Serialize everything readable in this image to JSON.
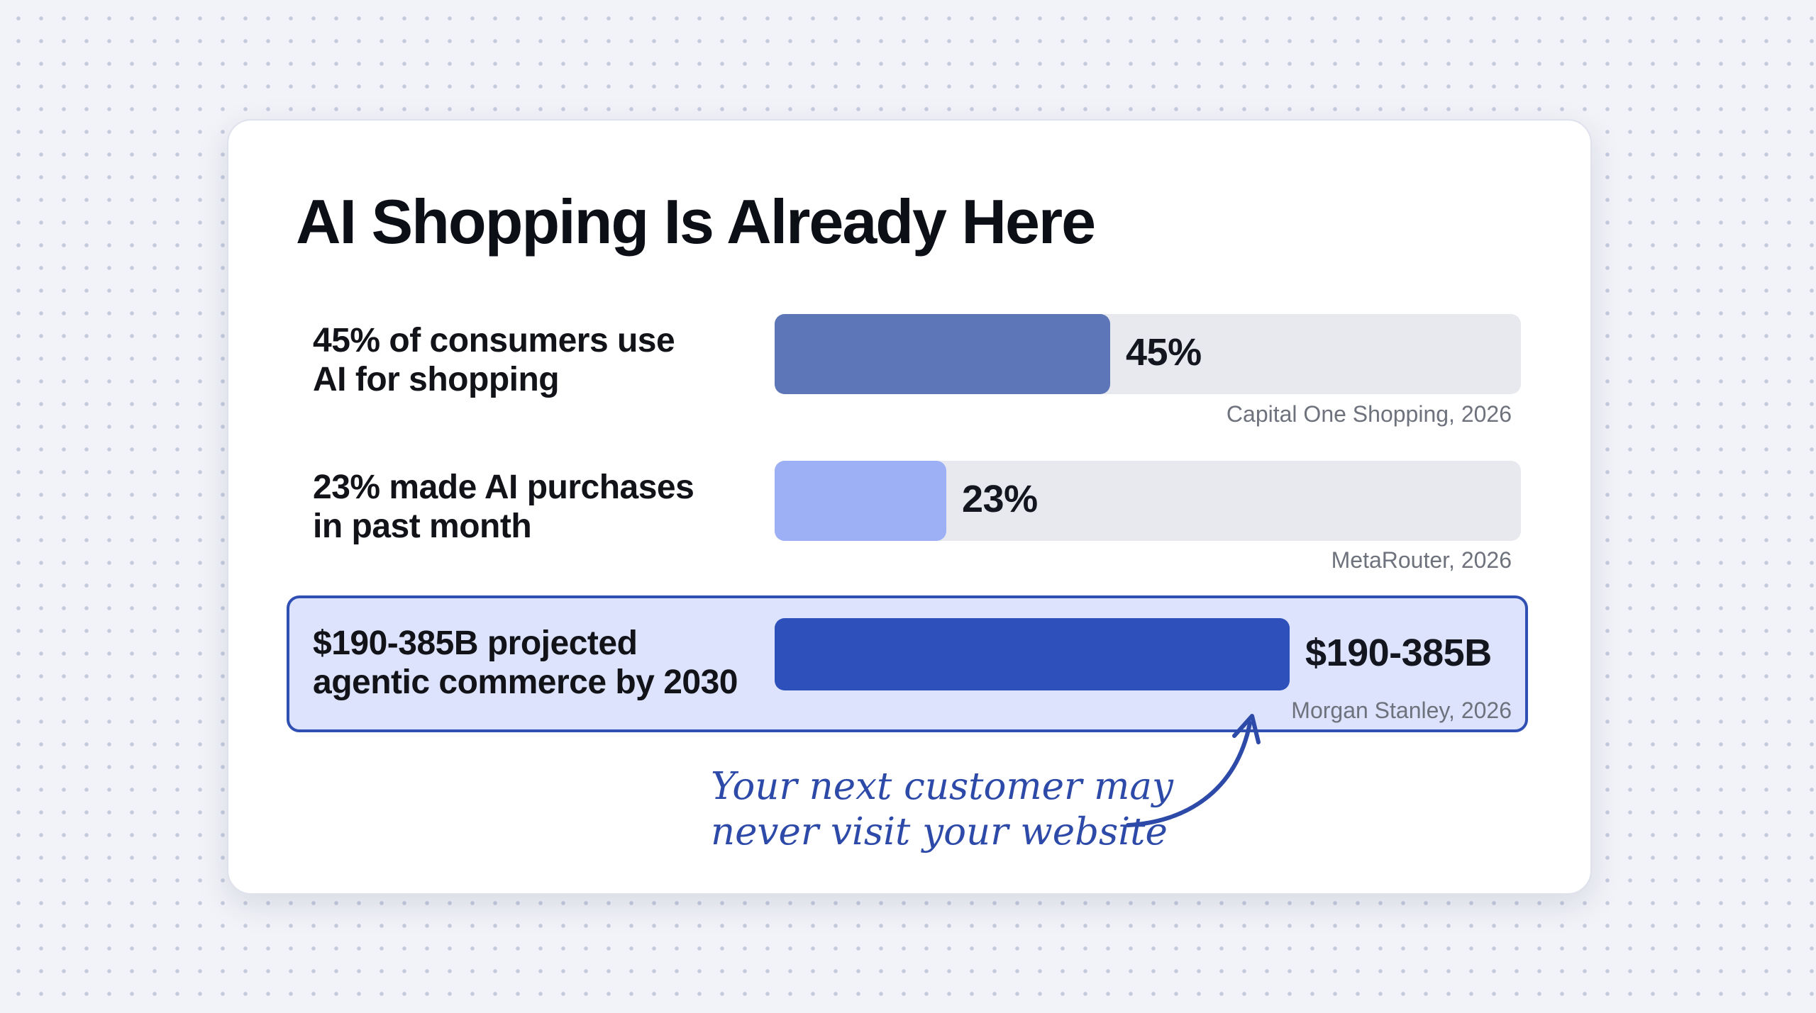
{
  "chart_data": {
    "type": "bar",
    "orientation": "horizontal",
    "title": "AI Shopping Is Already Here",
    "bars": [
      {
        "label_lines": [
          "45% of consumers use",
          "AI for shopping"
        ],
        "value": 45,
        "value_label": "45%",
        "source": "Capital One Shopping, 2026",
        "color": "#5d76b8",
        "highlighted": false
      },
      {
        "label_lines": [
          "23% made AI purchases",
          "in past month"
        ],
        "value": 23,
        "value_label": "23%",
        "source": "MetaRouter, 2026",
        "color": "#9db0f5",
        "highlighted": false
      },
      {
        "label_lines": [
          "$190-385B projected",
          "agentic commerce by 2030"
        ],
        "value": 69,
        "value_label": "$190-385B",
        "source": "Morgan Stanley, 2026",
        "color": "#2d50bb",
        "highlighted": true
      }
    ],
    "track_color": "#e8e9ef",
    "highlight_color": "#2f4fb3",
    "annotation": {
      "lines": [
        "Your next customer may",
        "never visit your website"
      ],
      "color": "#2d4aa8"
    },
    "xlim": [
      0,
      100
    ]
  }
}
